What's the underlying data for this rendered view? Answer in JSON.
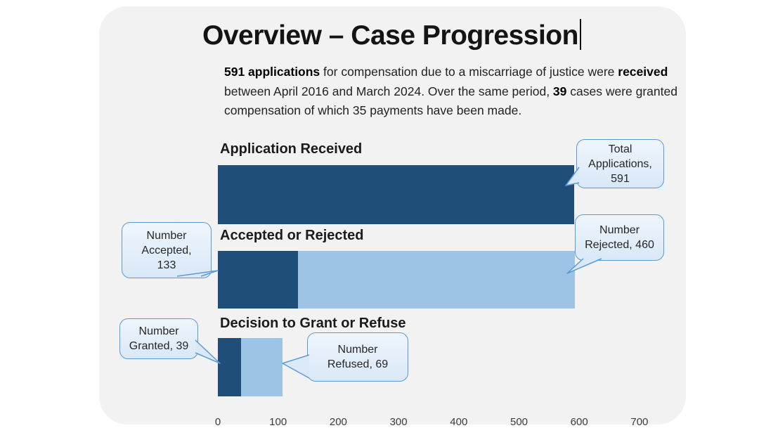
{
  "title": "Overview – Case Progression",
  "intro": {
    "segments": [
      {
        "text": "591 applications",
        "bold": true
      },
      {
        "text": " for compensation due to a miscarriage of justice were ",
        "bold": false
      },
      {
        "text": "received",
        "bold": true
      },
      {
        "text": "\nbetween April 2016 and March 2024. Over the same period,  ",
        "bold": false
      },
      {
        "text": "39",
        "bold": true
      },
      {
        "text": " cases were granted\ncompensation of which 35 payments have been made.",
        "bold": false
      }
    ]
  },
  "chart_data": {
    "type": "bar",
    "orientation": "horizontal",
    "title": "",
    "xlabel": "",
    "ylabel": "",
    "xlim": [
      0,
      700
    ],
    "axis_ticks": [
      0,
      100,
      200,
      300,
      400,
      500,
      600,
      700
    ],
    "grid": false,
    "rows": [
      {
        "label": "Application Received",
        "segments": [
          {
            "name": "Total Applications",
            "value": 591,
            "shade": "dark"
          }
        ]
      },
      {
        "label": "Accepted or Rejected",
        "segments": [
          {
            "name": "Number Accepted",
            "value": 133,
            "shade": "dark"
          },
          {
            "name": "Number Rejected",
            "value": 460,
            "shade": "light"
          }
        ]
      },
      {
        "label": "Decision to Grant or Refuse",
        "segments": [
          {
            "name": "Number Granted",
            "value": 39,
            "shade": "dark"
          },
          {
            "name": "Number Refused",
            "value": 69,
            "shade": "light"
          }
        ]
      }
    ],
    "callouts": [
      {
        "id": "total-applications",
        "text": "Total\nApplications,\n591"
      },
      {
        "id": "number-accepted",
        "text": "Number\nAccepted,\n133"
      },
      {
        "id": "number-rejected",
        "text": "Number\nRejected, 460"
      },
      {
        "id": "number-granted",
        "text": "Number\nGranted, 39"
      },
      {
        "id": "number-refused",
        "text": "Number\nRefused, 69"
      }
    ],
    "colors": {
      "dark": "#1f4e79",
      "light": "#9dc3e6",
      "callout_fill": "#dbe9f7",
      "callout_border": "#5b9bd5",
      "slide_background": "#f2f2f2"
    }
  }
}
